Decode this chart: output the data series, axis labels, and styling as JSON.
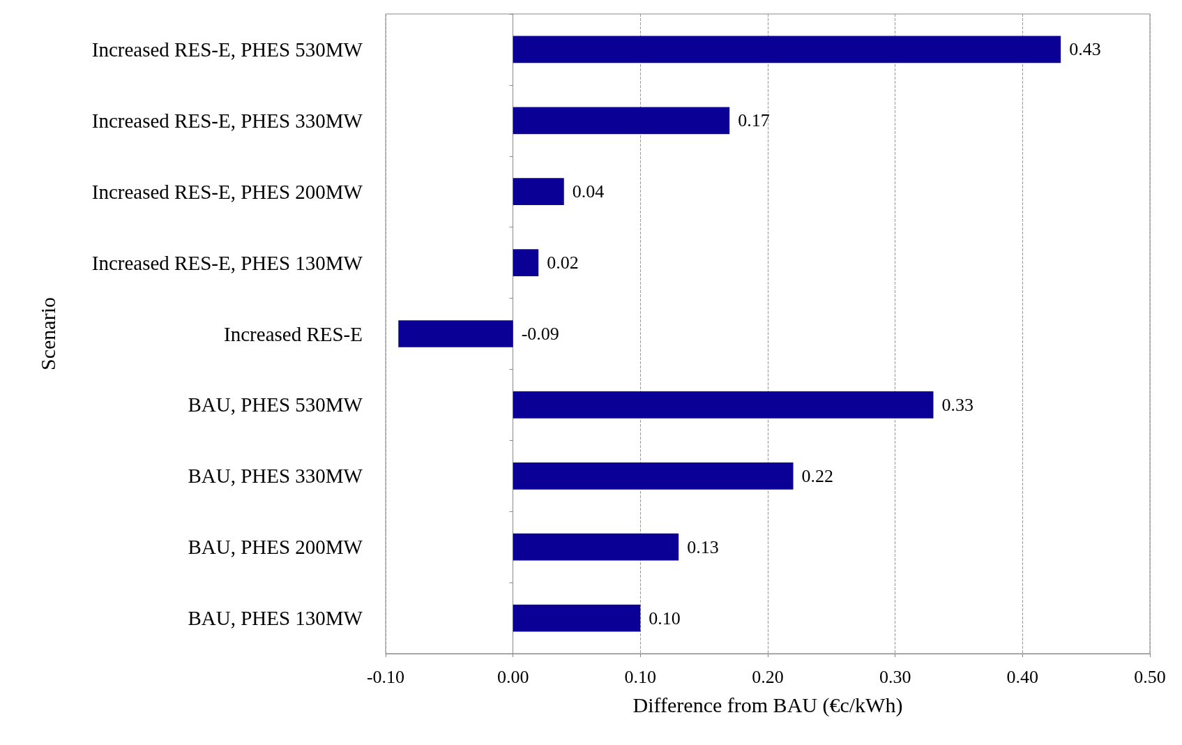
{
  "chart_data": {
    "type": "bar",
    "orientation": "horizontal",
    "xlabel": "Difference from BAU (€c/kWh)",
    "ylabel": "Scenario",
    "categories": [
      "Increased RES-E, PHES 530MW",
      "Increased RES-E, PHES 330MW",
      "Increased RES-E, PHES 200MW",
      "Increased RES-E, PHES 130MW",
      "Increased RES-E",
      "BAU, PHES 530MW",
      "BAU, PHES 330MW",
      "BAU, PHES 200MW",
      "BAU, PHES 130MW"
    ],
    "values": [
      0.43,
      0.17,
      0.04,
      0.02,
      -0.09,
      0.33,
      0.22,
      0.13,
      0.1
    ],
    "value_labels": [
      "0.43",
      "0.17",
      "0.04",
      "0.02",
      "-0.09",
      "0.33",
      "0.22",
      "0.13",
      "0.10"
    ],
    "color": "#0a0096",
    "xlim": [
      -0.1,
      0.5
    ],
    "xticks": [
      {
        "value": -0.1,
        "label": "-0.10"
      },
      {
        "value": 0,
        "label": "0.00"
      },
      {
        "value": 0.1,
        "label": "0.10"
      },
      {
        "value": 0.2,
        "label": "0.20"
      },
      {
        "value": 0.3,
        "label": "0.30"
      },
      {
        "value": 0.4,
        "label": "0.40"
      },
      {
        "value": 0.5,
        "label": "0.50"
      }
    ],
    "grid": "x"
  }
}
